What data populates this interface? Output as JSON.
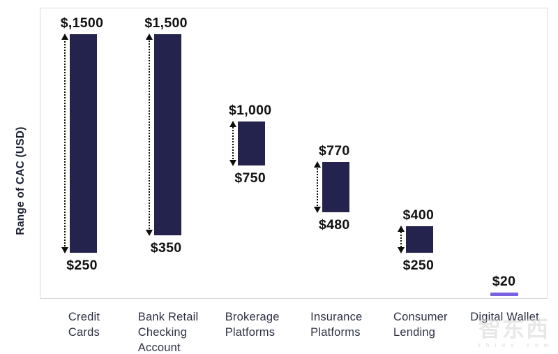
{
  "chart_data": {
    "type": "bar",
    "subtype": "floating-range-bars",
    "title": "",
    "xlabel": "",
    "ylabel": "Range of CAC (USD)",
    "ylim": [
      0,
      1600
    ],
    "grid": false,
    "legend": "none",
    "bar_color": "#23234d",
    "digital_wallet_line_color": "#7b62e3",
    "categories": [
      "Credit Cards",
      "Bank Retail Checking Account",
      "Brokerage Platforms",
      "Insurance Platforms",
      "Consumer Lending",
      "Digital Wallet"
    ],
    "series": [
      {
        "category": "Credit Cards",
        "label_lines": "Credit\nCards",
        "low": 250,
        "high": 1500,
        "low_label": "$250",
        "high_label": "$,1500",
        "mark": "range"
      },
      {
        "category": "Bank Retail Checking Account",
        "label_lines": "Bank Retail\nChecking\nAccount",
        "low": 350,
        "high": 1500,
        "low_label": "$350",
        "high_label": "$1,500",
        "mark": "range"
      },
      {
        "category": "Brokerage Platforms",
        "label_lines": "Brokerage\nPlatforms",
        "low": 750,
        "high": 1000,
        "low_label": "$750",
        "high_label": "$1,000",
        "mark": "range"
      },
      {
        "category": "Insurance Platforms",
        "label_lines": "Insurance\nPlatforms",
        "low": 480,
        "high": 770,
        "low_label": "$480",
        "high_label": "$770",
        "mark": "range"
      },
      {
        "category": "Consumer Lending",
        "label_lines": "Consumer\nLending",
        "low": 250,
        "high": 400,
        "low_label": "$250",
        "high_label": "$400",
        "mark": "range"
      },
      {
        "category": "Digital Wallet",
        "label_lines": "Digital Wallet",
        "low": 20,
        "high": 20,
        "low_label": "",
        "high_label": "$20",
        "mark": "line"
      }
    ]
  },
  "watermark": {
    "brand": "智东西",
    "site": "z h i d x . c o m"
  }
}
